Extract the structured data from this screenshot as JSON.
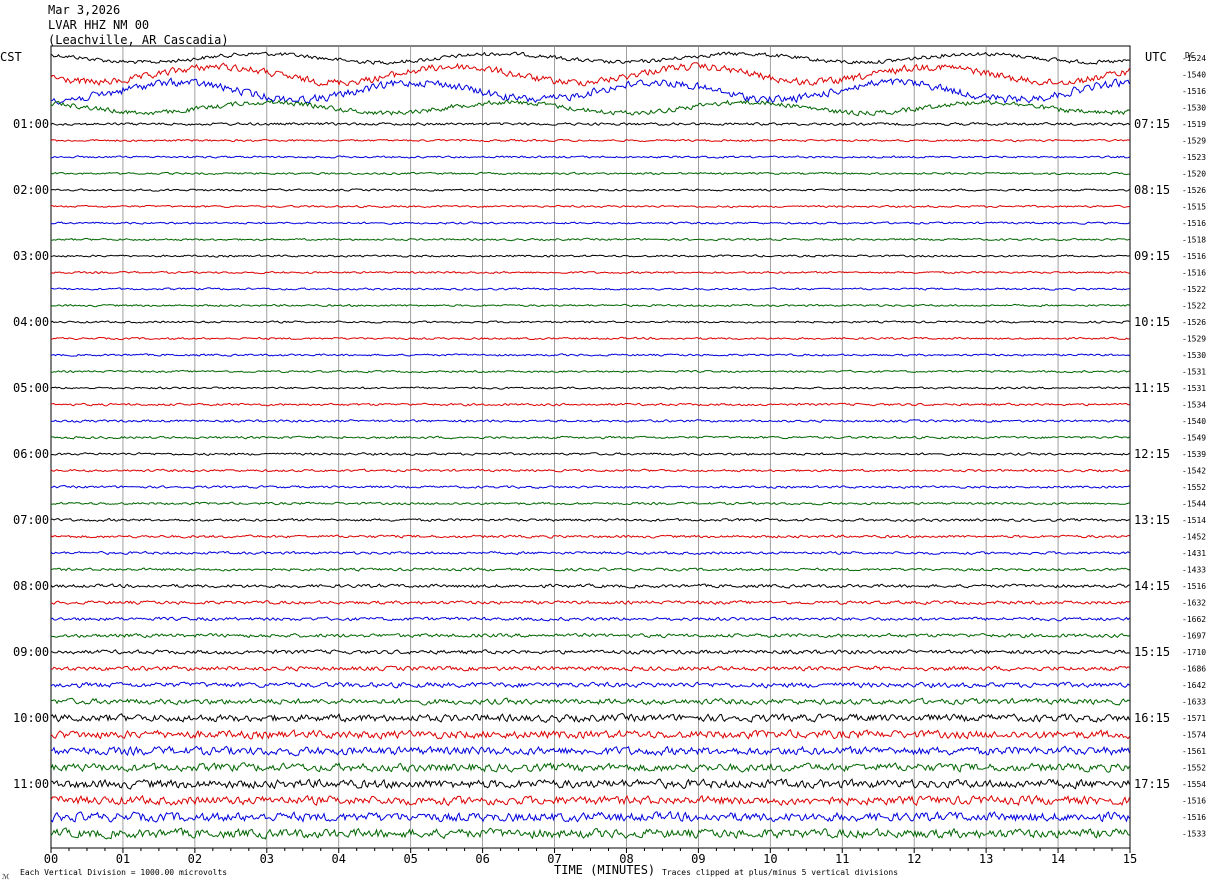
{
  "header": {
    "date": "Mar 3,2026",
    "station": "LVAR HHZ NM 00",
    "location": "(Leachville, AR Cascadia)"
  },
  "labels": {
    "left_tz": "CST",
    "right_tz": "UTC",
    "dc_header": "DC",
    "x_title": "TIME (MINUTES)",
    "scale_note": "Each Vertical Division = 1000.00 microvolts",
    "clip_note": "Traces clipped at plus/minus 5 vertical divisions",
    "logo_glyph": "ℳ"
  },
  "colors": [
    "#000000",
    "#dd0000",
    "#0000dd",
    "#006600"
  ],
  "chart_data": {
    "type": "line",
    "title": "LVAR HHZ NM 00",
    "xlabel": "TIME (MINUTES)",
    "xlim": [
      0,
      15
    ],
    "x_ticks": [
      "00",
      "01",
      "02",
      "03",
      "04",
      "05",
      "06",
      "07",
      "08",
      "09",
      "10",
      "11",
      "12",
      "13",
      "14",
      "15"
    ],
    "trace_count": 48,
    "left_hour_labels": [
      "01:00",
      "02:00",
      "03:00",
      "04:00",
      "05:00",
      "06:00",
      "07:00",
      "08:00",
      "09:00",
      "10:00",
      "11:00"
    ],
    "right_hour_labels": [
      "07:15",
      "08:15",
      "09:15",
      "10:15",
      "11:15",
      "12:15",
      "13:15",
      "14:15",
      "15:15",
      "16:15",
      "17:15"
    ],
    "hour_label_first_trace": 4,
    "hour_label_every": 4,
    "dc_offsets": [
      "-1524",
      "-1540",
      "-1516",
      "-1530",
      "-1519",
      "-1529",
      "-1523",
      "-1520",
      "-1526",
      "-1515",
      "-1516",
      "-1518",
      "-1516",
      "-1516",
      "-1522",
      "-1522",
      "-1526",
      "-1529",
      "-1530",
      "-1531",
      "-1531",
      "-1534",
      "-1540",
      "-1549",
      "-1539",
      "-1542",
      "-1552",
      "-1544",
      "-1514",
      "-1452",
      "-1431",
      "-1433",
      "-1516",
      "-1632",
      "-1662",
      "-1697",
      "-1710",
      "-1686",
      "-1642",
      "-1633",
      "-1571",
      "-1574",
      "-1561",
      "-1552",
      "-1554",
      "-1516",
      "-1516",
      "-1533"
    ],
    "relative_amplitude": [
      1.2,
      2.2,
      2.4,
      1.5,
      0.8,
      0.6,
      0.6,
      0.6,
      0.6,
      0.6,
      0.6,
      0.6,
      0.6,
      0.6,
      0.6,
      0.6,
      0.6,
      0.6,
      0.6,
      0.6,
      0.6,
      0.7,
      0.7,
      0.7,
      0.7,
      0.7,
      0.7,
      0.7,
      0.8,
      0.8,
      0.8,
      0.8,
      1.0,
      1.0,
      1.0,
      1.1,
      1.2,
      1.3,
      1.5,
      1.7,
      2.2,
      2.4,
      2.5,
      2.4,
      2.6,
      2.6,
      2.7,
      2.7
    ],
    "grid": true
  }
}
